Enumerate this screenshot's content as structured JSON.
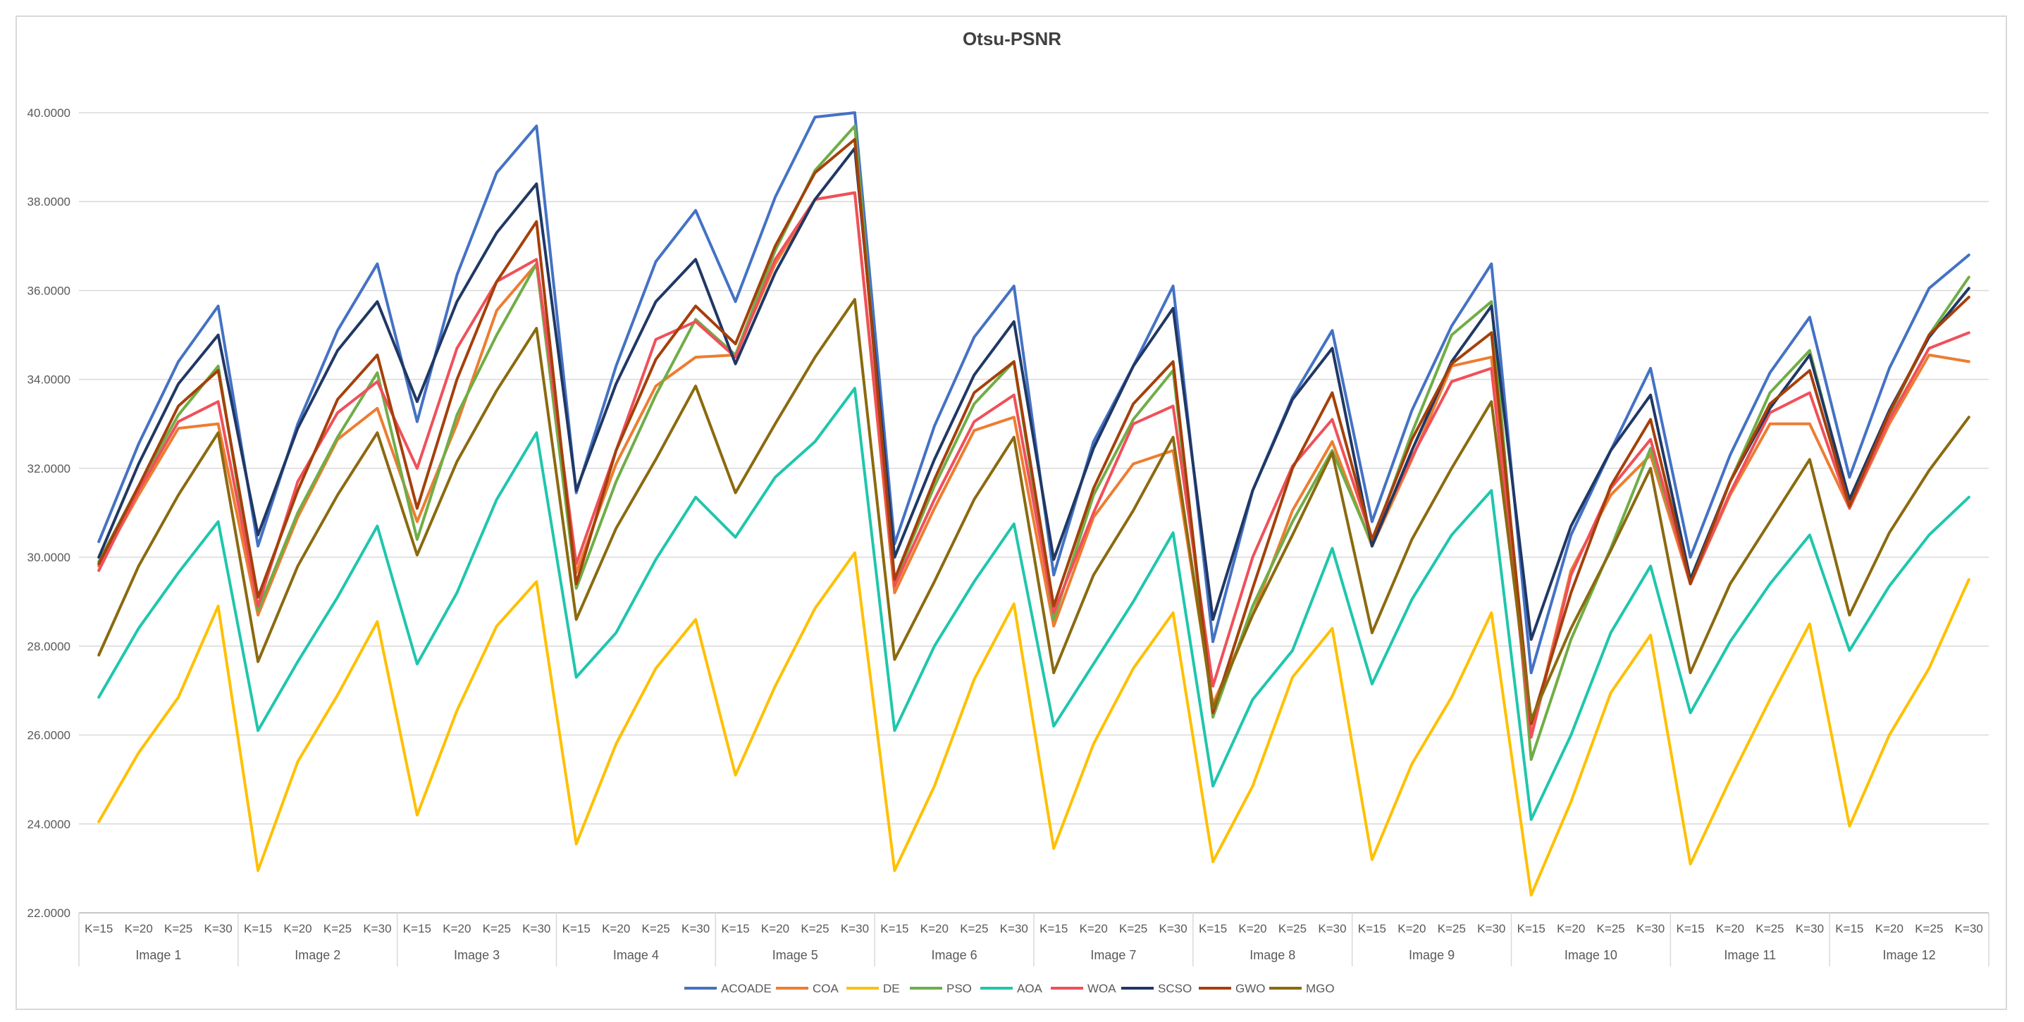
{
  "chart_data": {
    "type": "line",
    "title": "Otsu-PSNR",
    "xlabel": "",
    "ylabel": "",
    "ylim": [
      22,
      40
    ],
    "yticks": [
      "22.0000",
      "24.0000",
      "26.0000",
      "28.0000",
      "30.0000",
      "32.0000",
      "34.0000",
      "36.0000",
      "38.0000",
      "40.0000"
    ],
    "grid": true,
    "legend_position": "bottom",
    "groups": [
      "Image 1",
      "Image 2",
      "Image 3",
      "Image 4",
      "Image 5",
      "Image 6",
      "Image 7",
      "Image 8",
      "Image 9",
      "Image 10",
      "Image 11",
      "Image 12"
    ],
    "subcategories": [
      "K=15",
      "K=20",
      "K=25",
      "K=30"
    ],
    "series": [
      {
        "name": "ACOADE",
        "color": "#4472C4",
        "values": [
          30.35,
          32.55,
          34.4,
          35.65,
          30.25,
          33.0,
          35.1,
          36.6,
          33.05,
          36.35,
          38.65,
          39.7,
          31.45,
          34.3,
          36.65,
          37.8,
          35.75,
          38.1,
          39.9,
          40.0,
          30.3,
          32.95,
          34.95,
          36.1,
          29.6,
          32.6,
          34.3,
          36.1,
          28.1,
          31.5,
          33.6,
          35.1,
          30.8,
          33.3,
          35.2,
          36.6,
          27.4,
          30.5,
          32.4,
          34.25,
          30.0,
          32.3,
          34.15,
          35.4,
          31.8,
          34.25,
          36.05,
          36.8
        ]
      },
      {
        "name": "COA",
        "color": "#ED7D31",
        "values": [
          29.8,
          31.4,
          32.9,
          33.0,
          28.7,
          30.9,
          32.65,
          33.35,
          30.8,
          33.0,
          35.55,
          36.6,
          29.65,
          32.1,
          33.85,
          34.5,
          34.55,
          36.6,
          38.05,
          38.2,
          29.2,
          31.1,
          32.85,
          33.15,
          28.45,
          30.9,
          32.1,
          32.4,
          26.7,
          28.7,
          31.05,
          32.6,
          30.25,
          32.2,
          34.3,
          34.5,
          26.0,
          29.7,
          31.4,
          32.3,
          29.4,
          31.4,
          33.0,
          33.0,
          31.1,
          33.0,
          34.55,
          34.4
        ]
      },
      {
        "name": "DE",
        "color": "#FFC000",
        "values": [
          24.05,
          25.6,
          26.85,
          28.9,
          22.95,
          25.4,
          26.9,
          28.55,
          24.2,
          26.55,
          28.45,
          29.45,
          23.55,
          25.8,
          27.5,
          28.6,
          25.1,
          27.1,
          28.85,
          30.1,
          22.95,
          24.85,
          27.25,
          28.95,
          23.45,
          25.8,
          27.5,
          28.75,
          23.15,
          24.85,
          27.3,
          28.4,
          23.2,
          25.35,
          26.85,
          28.75,
          22.4,
          24.5,
          26.95,
          28.25,
          23.1,
          25.0,
          26.8,
          28.5,
          23.95,
          26.0,
          27.5,
          29.5
        ]
      },
      {
        "name": "PSO",
        "color": "#70AD47",
        "values": [
          29.9,
          31.6,
          33.2,
          34.3,
          28.8,
          31.0,
          32.7,
          34.15,
          30.4,
          33.2,
          35.0,
          36.6,
          29.3,
          31.7,
          33.65,
          35.35,
          34.55,
          36.9,
          38.7,
          39.7,
          29.45,
          31.6,
          33.45,
          34.4,
          28.6,
          31.4,
          33.1,
          34.2,
          26.4,
          28.9,
          30.8,
          32.4,
          30.3,
          32.8,
          35.0,
          35.75,
          25.45,
          28.15,
          30.2,
          32.45,
          29.5,
          31.7,
          33.7,
          34.65,
          31.2,
          33.2,
          35.0,
          36.3
        ]
      },
      {
        "name": "AOA",
        "color": "#1FC6AD",
        "values": [
          26.85,
          28.4,
          29.65,
          30.8,
          26.1,
          27.65,
          29.1,
          30.7,
          27.6,
          29.2,
          31.3,
          32.8,
          27.3,
          28.3,
          29.95,
          31.35,
          30.45,
          31.8,
          32.6,
          33.8,
          26.1,
          28.0,
          29.45,
          30.75,
          26.2,
          27.6,
          29.0,
          30.55,
          24.85,
          26.8,
          27.9,
          30.2,
          27.15,
          29.05,
          30.5,
          31.5,
          24.1,
          26.0,
          28.3,
          29.8,
          26.5,
          28.1,
          29.4,
          30.5,
          27.9,
          29.35,
          30.5,
          31.35
        ]
      },
      {
        "name": "WOA",
        "color": "#F0505A",
        "values": [
          29.7,
          31.5,
          33.05,
          33.5,
          28.9,
          31.7,
          33.25,
          33.95,
          32.0,
          34.7,
          36.2,
          36.7,
          29.85,
          32.4,
          34.9,
          35.3,
          34.5,
          36.7,
          38.05,
          38.2,
          29.35,
          31.3,
          33.05,
          33.65,
          28.75,
          31.0,
          33.0,
          33.4,
          27.1,
          30.0,
          32.05,
          33.1,
          30.4,
          32.25,
          33.95,
          34.25,
          25.95,
          29.6,
          31.55,
          32.65,
          29.4,
          31.45,
          33.25,
          33.7,
          31.1,
          33.1,
          34.7,
          35.05
        ]
      },
      {
        "name": "SCSO",
        "color": "#203864",
        "values": [
          30.0,
          32.1,
          33.9,
          35.0,
          30.5,
          32.9,
          34.65,
          35.75,
          33.5,
          35.75,
          37.3,
          38.4,
          31.5,
          33.9,
          35.75,
          36.7,
          34.35,
          36.4,
          38.05,
          39.2,
          30.0,
          32.2,
          34.1,
          35.3,
          29.95,
          32.45,
          34.3,
          35.6,
          28.6,
          31.5,
          33.55,
          34.7,
          30.25,
          32.4,
          34.4,
          35.65,
          28.15,
          30.7,
          32.4,
          33.65,
          29.5,
          31.7,
          33.35,
          34.55,
          31.3,
          33.3,
          34.95,
          36.05
        ]
      },
      {
        "name": "GWO",
        "color": "#A5400B",
        "values": [
          29.85,
          31.6,
          33.4,
          34.2,
          29.1,
          31.5,
          33.55,
          34.55,
          31.1,
          34.0,
          36.2,
          37.55,
          29.4,
          32.4,
          34.45,
          35.65,
          34.8,
          37.0,
          38.65,
          39.4,
          29.5,
          31.75,
          33.7,
          34.4,
          28.9,
          31.55,
          33.45,
          34.4,
          26.5,
          29.3,
          32.0,
          33.7,
          30.4,
          32.65,
          34.35,
          35.05,
          26.25,
          29.2,
          31.6,
          33.1,
          29.4,
          31.7,
          33.45,
          34.2,
          31.15,
          33.25,
          35.0,
          35.85
        ]
      },
      {
        "name": "MGO",
        "color": "#8B6A0F",
        "values": [
          27.8,
          29.8,
          31.4,
          32.8,
          27.65,
          29.8,
          31.4,
          32.8,
          30.05,
          32.15,
          33.75,
          35.15,
          28.6,
          30.65,
          32.2,
          33.85,
          31.45,
          33.0,
          34.5,
          35.8,
          27.7,
          29.45,
          31.3,
          32.7,
          27.4,
          29.6,
          31.05,
          32.7,
          26.6,
          28.7,
          30.5,
          32.35,
          28.3,
          30.4,
          32.0,
          33.5,
          26.35,
          28.4,
          30.15,
          32.0,
          27.4,
          29.4,
          30.8,
          32.2,
          28.7,
          30.55,
          31.95,
          33.15
        ]
      }
    ]
  }
}
